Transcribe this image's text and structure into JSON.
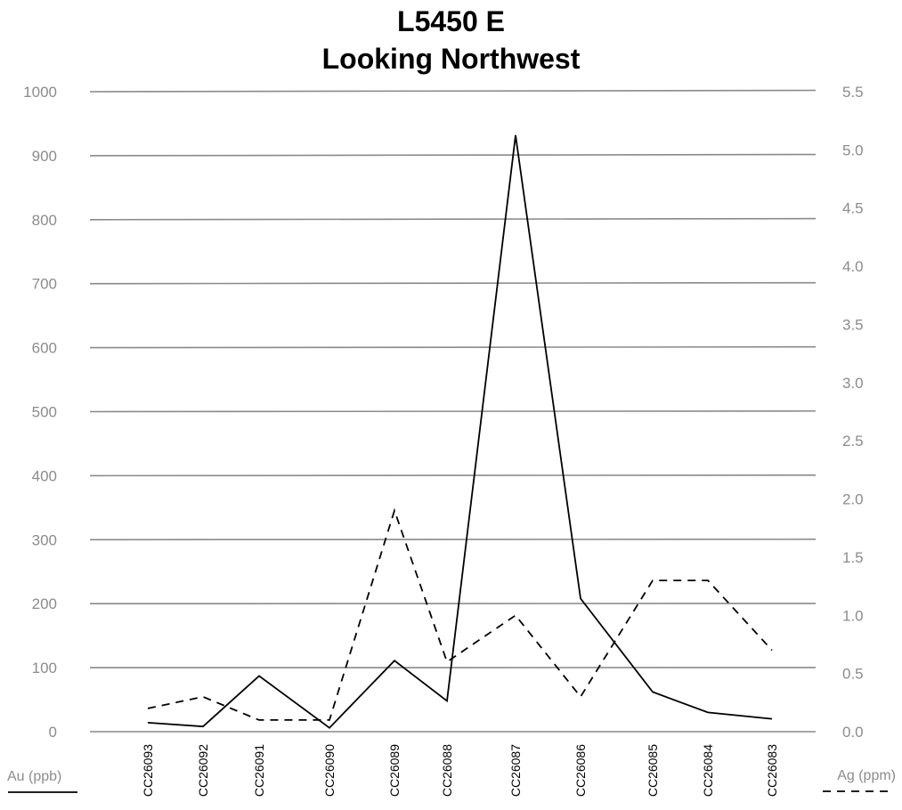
{
  "chart_data": {
    "type": "line",
    "title_lines": [
      "L5450 E",
      "Looking Northwest"
    ],
    "categories": [
      "CC26093",
      "CC26092",
      "CC26091",
      "CC26090",
      "CC26089",
      "CC26088",
      "CC26087",
      "CC26086",
      "CC26085",
      "CC26084",
      "CC26083"
    ],
    "y_left": {
      "label": "Au (ppb)",
      "min": 0,
      "max": 1000,
      "ticks": [
        "0",
        "100",
        "200",
        "300",
        "400",
        "500",
        "600",
        "700",
        "800",
        "900",
        "1000"
      ]
    },
    "y_right": {
      "label": "Ag (ppm)",
      "min": 0,
      "max": 5.5,
      "ticks": [
        "0.0",
        "0.5",
        "1.0",
        "1.5",
        "2.0",
        "2.5",
        "3.0",
        "3.5",
        "4.0",
        "4.5",
        "5.0",
        "5.5"
      ]
    },
    "series": [
      {
        "name": "Au (ppb)",
        "axis": "left",
        "style": "solid",
        "color": "#000000",
        "values": [
          14,
          8,
          87,
          6,
          111,
          48,
          932,
          208,
          62,
          30,
          20
        ]
      },
      {
        "name": "Ag (ppm)",
        "axis": "right",
        "style": "dashed",
        "color": "#000000",
        "values": [
          0.2,
          0.3,
          0.1,
          0.1,
          1.9,
          0.6,
          1.0,
          0.3,
          1.3,
          1.3,
          0.7
        ]
      }
    ],
    "grid": true,
    "legend": "bottom-corners"
  }
}
